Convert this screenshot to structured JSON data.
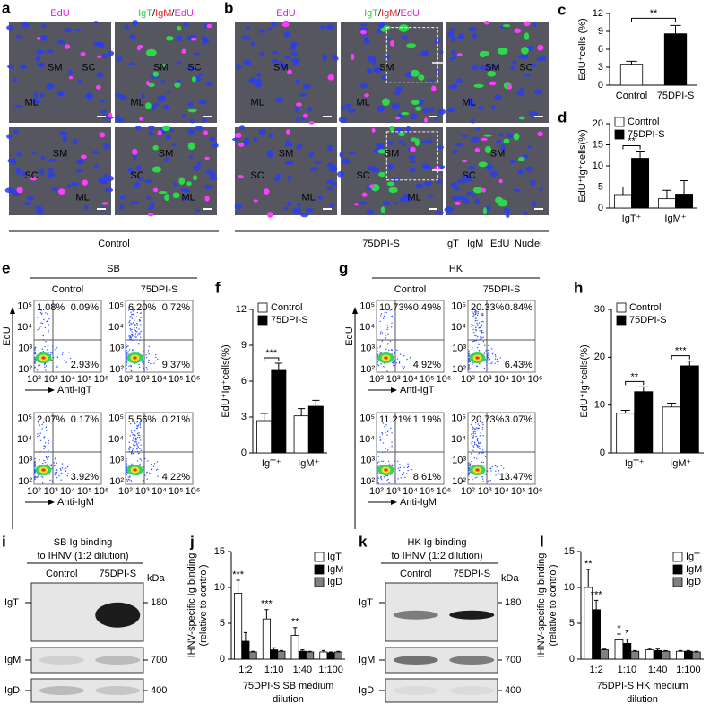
{
  "panel_labels": [
    "a",
    "b",
    "c",
    "d",
    "e",
    "f",
    "g",
    "h",
    "i",
    "j",
    "k",
    "l"
  ],
  "microscopy": {
    "control": {
      "headers": [
        [
          "EdU"
        ],
        [
          "IgT",
          "/",
          "IgM",
          "/",
          "EdU"
        ]
      ],
      "tiles": [
        [
          "SM",
          "SC",
          "ML"
        ],
        [
          "SM",
          "SC",
          "ML"
        ],
        [
          "SM",
          "SC",
          "ML"
        ],
        [
          "SM",
          "SC",
          "ML"
        ]
      ],
      "caption": "Control"
    },
    "dpi": {
      "headers": [
        [
          "EdU"
        ],
        [
          "IgT",
          "/",
          "IgM",
          "/",
          "EdU"
        ]
      ],
      "tiles": [
        [
          "SM",
          "ML"
        ],
        [
          "SM",
          "ML"
        ],
        [
          "SM",
          "SC",
          "ML"
        ],
        [
          "SC",
          "SM",
          "ML"
        ],
        [
          "SC",
          "SM",
          "ML"
        ],
        [
          "SC",
          "SM"
        ]
      ],
      "caption": "75DPI-S"
    },
    "legend": [
      "IgT",
      "IgM",
      "EdU",
      "Nuclei"
    ]
  },
  "flow": {
    "axis": {
      "y_label": "EdU",
      "xticks": [
        "10²",
        "10³",
        "10⁴",
        "10⁵",
        "10⁶"
      ],
      "yticks": [
        "10²",
        "10³",
        "10⁴",
        "10⁵"
      ]
    },
    "panels": [
      {
        "tissue": "SB",
        "columns": [
          "Control",
          "75DPI-S"
        ],
        "rows": [
          {
            "x_label": "Anti-IgT",
            "plots": [
              [
                "1.08%",
                "0.09%",
                "2.93%"
              ],
              [
                "6.20%",
                "0.72%",
                "9.37%"
              ]
            ]
          },
          {
            "x_label": "Anti-IgM",
            "plots": [
              [
                "2.07%",
                "0.17%",
                "3.92%"
              ],
              [
                "5.56%",
                "0.21%",
                "4.22%"
              ]
            ]
          }
        ]
      },
      {
        "tissue": "HK",
        "columns": [
          "Control",
          "75DPI-S"
        ],
        "rows": [
          {
            "x_label": "Anti-IgT",
            "plots": [
              [
                "10.73%",
                "0.49%",
                "4.92%"
              ],
              [
                "20.33%",
                "0.84%",
                "6.43%"
              ]
            ]
          },
          {
            "x_label": "Anti-IgM",
            "plots": [
              [
                "11.21%",
                "1.19%",
                "8.61%"
              ],
              [
                "20.73%",
                "3.07%",
                "13.47%"
              ]
            ]
          }
        ]
      }
    ]
  },
  "blots": [
    {
      "title": [
        "SB Ig binding",
        "to IHNV (1:2 dilution)"
      ],
      "columns": [
        "Control",
        "75DPI-S"
      ],
      "unit": "kDa",
      "rows": [
        {
          "label": "IgT",
          "kda": "180"
        },
        {
          "label": "IgM",
          "kda": "700"
        },
        {
          "label": "IgD",
          "kda": "400"
        }
      ]
    },
    {
      "title": [
        "HK Ig binding",
        "to IHNV (1:2 dilution)"
      ],
      "columns": [
        "Control",
        "75DPI-S"
      ],
      "unit": "kDa",
      "rows": [
        {
          "label": "IgT",
          "kda": "180"
        },
        {
          "label": "IgM",
          "kda": "700"
        },
        {
          "label": "IgD",
          "kda": "400"
        }
      ]
    }
  ],
  "chart_data": [
    {
      "type": "bar",
      "ylabel": [
        "EdU⁺cells (%)"
      ],
      "categories": [
        "Control",
        "75DPI-S"
      ],
      "values": [
        3.5,
        8.6
      ],
      "errors": [
        0.5,
        1.4
      ],
      "colors": [
        "#ffffff",
        "#000000"
      ],
      "ylim": [
        0,
        12
      ],
      "yticks": [
        0,
        3,
        6,
        9,
        12
      ],
      "annotations": [
        "**"
      ]
    },
    {
      "type": "bar",
      "ylabel": [
        "EdU⁺Ig⁺cells(%)"
      ],
      "categories": [
        "IgT⁺",
        "IgM⁺"
      ],
      "series": [
        {
          "name": "Control",
          "color": "#ffffff",
          "values": [
            3.2,
            2.2
          ],
          "errors": [
            1.8,
            2.0
          ]
        },
        {
          "name": "75DPI-S",
          "color": "#000000",
          "values": [
            11.8,
            3.3
          ],
          "errors": [
            1.7,
            3.2
          ]
        }
      ],
      "ylim": [
        0,
        20
      ],
      "yticks": [
        0,
        5,
        10,
        15,
        20
      ],
      "annotations": [
        "**"
      ]
    },
    {
      "type": "bar",
      "ylabel": [
        "EdU⁺Ig⁺cells(%)"
      ],
      "categories": [
        "IgT⁺",
        "IgM⁺"
      ],
      "series": [
        {
          "name": "Control",
          "color": "#ffffff",
          "values": [
            2.7,
            3.1
          ],
          "errors": [
            0.6,
            0.6
          ]
        },
        {
          "name": "75DPI-S",
          "color": "#000000",
          "values": [
            6.9,
            3.9
          ],
          "errors": [
            0.6,
            0.5
          ]
        }
      ],
      "ylim": [
        0,
        12
      ],
      "yticks": [
        0,
        3,
        6,
        9,
        12
      ],
      "annotations": [
        "***"
      ]
    },
    {
      "type": "bar",
      "ylabel": [
        "EdU⁺Ig⁺cells(%)"
      ],
      "categories": [
        "IgT⁺",
        "IgM⁺"
      ],
      "series": [
        {
          "name": "Control",
          "color": "#ffffff",
          "values": [
            8.3,
            9.6
          ],
          "errors": [
            0.6,
            0.8
          ]
        },
        {
          "name": "75DPI-S",
          "color": "#000000",
          "values": [
            12.8,
            18.2
          ],
          "errors": [
            1.0,
            1.0
          ]
        }
      ],
      "ylim": [
        0,
        30
      ],
      "yticks": [
        0,
        10,
        20,
        30
      ],
      "annotations": [
        "**",
        "***"
      ]
    },
    {
      "type": "bar",
      "ylabel": [
        "IHNV-specific Ig binding",
        "(relative to control)"
      ],
      "xlabel": [
        "75DPI-S SB medium",
        "dilution"
      ],
      "categories": [
        "1:2",
        "1:10",
        "1:40",
        "1:100"
      ],
      "series": [
        {
          "name": "IgT",
          "color": "#ffffff",
          "values": [
            9.2,
            5.6,
            3.3,
            1.0
          ],
          "errors": [
            1.8,
            1.3,
            1.1,
            0.2
          ]
        },
        {
          "name": "IgM",
          "color": "#000000",
          "values": [
            2.5,
            1.3,
            1.1,
            0.9
          ],
          "errors": [
            1.2,
            0.3,
            0.2,
            0.1
          ]
        },
        {
          "name": "IgD",
          "color": "#808080",
          "values": [
            1.0,
            1.1,
            1.0,
            1.0
          ],
          "errors": [
            0.1,
            0.1,
            0.1,
            0.1
          ]
        }
      ],
      "ylim": [
        0,
        15
      ],
      "yticks": [
        0,
        5,
        10,
        15
      ],
      "annotations": [
        "***",
        "***",
        "**"
      ]
    },
    {
      "type": "bar",
      "ylabel": [
        "IHNV-specific Ig binding",
        "(relative to control)"
      ],
      "xlabel": [
        "75DPI-S HK medium",
        "dilution"
      ],
      "categories": [
        "1:2",
        "1:10",
        "1:40",
        "1:100"
      ],
      "series": [
        {
          "name": "IgT",
          "color": "#ffffff",
          "values": [
            10.0,
            2.7,
            1.3,
            1.1
          ],
          "errors": [
            2.5,
            0.8,
            0.2,
            0.1
          ]
        },
        {
          "name": "IgM",
          "color": "#000000",
          "values": [
            6.9,
            2.2,
            1.2,
            1.1
          ],
          "errors": [
            1.3,
            0.6,
            0.2,
            0.1
          ]
        },
        {
          "name": "IgD",
          "color": "#808080",
          "values": [
            1.3,
            1.1,
            1.1,
            1.0
          ],
          "errors": [
            0.1,
            0.1,
            0.1,
            0.1
          ]
        }
      ],
      "ylim": [
        0,
        15
      ],
      "yticks": [
        0,
        5,
        10,
        15
      ],
      "annotations": [
        "**",
        "***",
        "*",
        "*"
      ]
    }
  ]
}
